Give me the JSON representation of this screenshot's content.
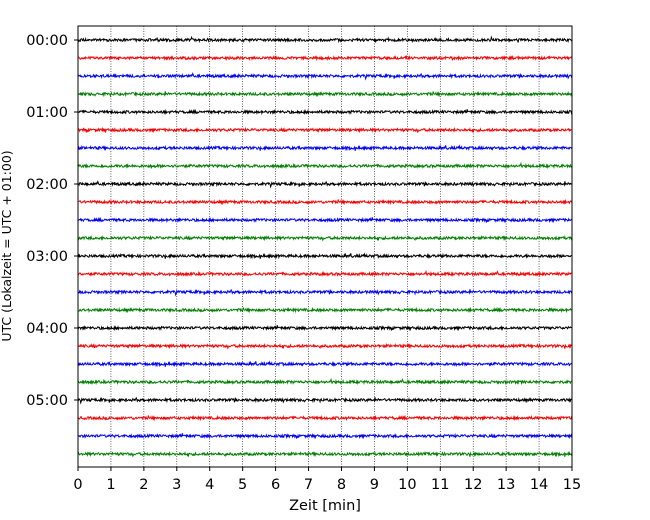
{
  "chart_data": {
    "type": "line",
    "title": "",
    "xlabel": "Zeit  [min]",
    "ylabel": "UTC (Lokalzeit = UTC + 01:00)",
    "xlim": [
      0,
      15
    ],
    "x_ticks": [
      0,
      1,
      2,
      3,
      4,
      5,
      6,
      7,
      8,
      9,
      10,
      11,
      12,
      13,
      14,
      15
    ],
    "y_tick_labels": [
      "00:00",
      "01:00",
      "02:00",
      "03:00",
      "04:00",
      "05:00"
    ],
    "traces_per_hour": 4,
    "trace_start_times": [
      "00:00",
      "00:15",
      "00:30",
      "00:45",
      "01:00",
      "01:15",
      "01:30",
      "01:45",
      "02:00",
      "02:15",
      "02:30",
      "02:45",
      "03:00",
      "03:15",
      "03:30",
      "03:45",
      "04:00",
      "04:15",
      "04:30",
      "04:45",
      "05:00",
      "05:15",
      "05:30",
      "05:45"
    ],
    "trace_colors": [
      "#000000",
      "#ff0000",
      "#0000ff",
      "#008000"
    ],
    "grid": "vertical dotted lines at each minute",
    "legend": "none",
    "series_description": "seismic helicorder traces, one 15-minute line per quarter hour"
  }
}
